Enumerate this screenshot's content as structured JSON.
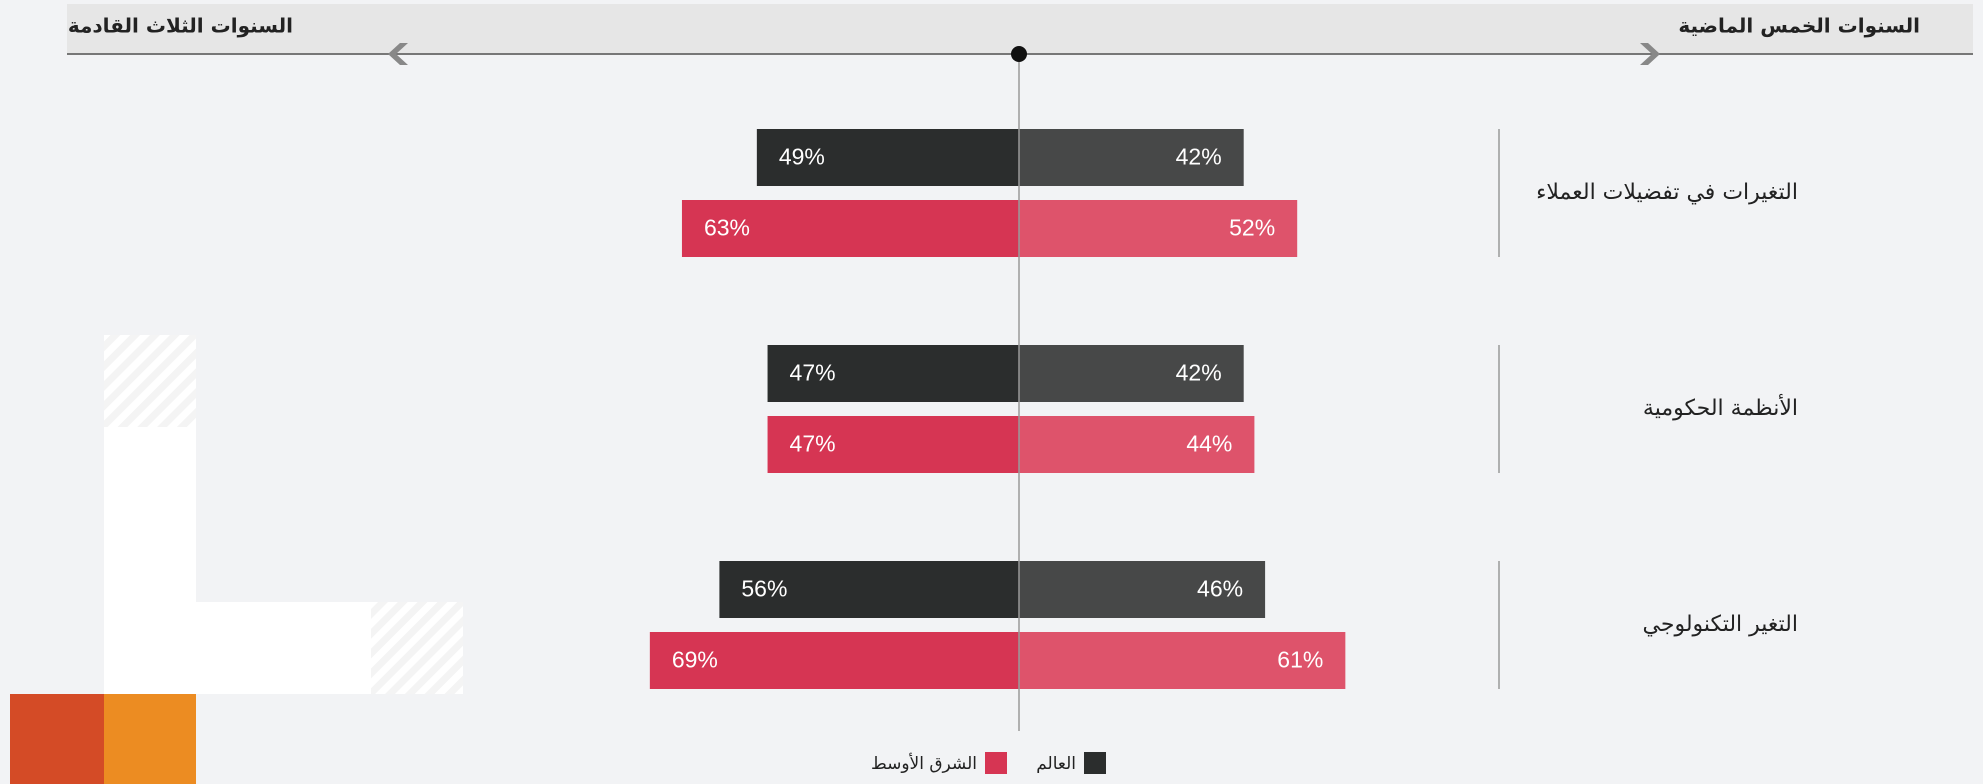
{
  "chart_data": {
    "type": "butterfly",
    "left_title": "السنوات الثلاث القادمة",
    "right_title": "السنوات الخمس الماضية",
    "categories": [
      "التغيرات في تفضيلات العملاء",
      "الأنظمة الحكومية",
      "التغير التكنولوجي"
    ],
    "series": [
      {
        "name": "العالم",
        "color": "#2b2d2d",
        "values": [
          49,
          47,
          56
        ],
        "value_labels": [
          "49%",
          "47%",
          "56%"
        ],
        "right_color": "#474848",
        "right_values": [
          42,
          42,
          46
        ],
        "right_value_labels": [
          "42%",
          "42%",
          "46%"
        ]
      },
      {
        "name": "الشرق الأوسط",
        "color": "#d63553",
        "values": [
          63,
          47,
          69
        ],
        "value_labels": [
          "63%",
          "47%",
          "69%"
        ],
        "right_color": "#de536b",
        "right_values": [
          52,
          44,
          61
        ],
        "right_value_labels": [
          "52%",
          "44%",
          "61%"
        ]
      }
    ]
  }
}
